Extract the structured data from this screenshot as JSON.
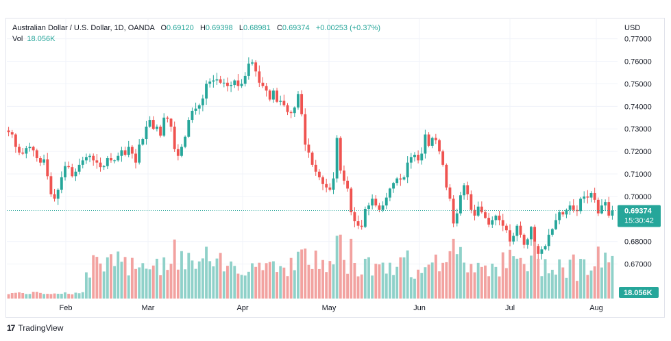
{
  "legend": {
    "symbol": "Australian Dollar / U.S. Dollar, 1D, OANDA",
    "o_label": "O",
    "o": "0.69120",
    "h_label": "H",
    "h": "0.69398",
    "l_label": "L",
    "l": "0.68981",
    "c_label": "C",
    "c": "0.69374",
    "change": "+0.00253 (+0.37%)",
    "vol_label": "Vol",
    "vol": "18.056K"
  },
  "currency": "USD",
  "price_badge": {
    "price": "0.69374",
    "countdown": "15:30:42"
  },
  "volume_badge": "18.056K",
  "watermark": "TradingView",
  "colors": {
    "up": "#26a69a",
    "down": "#ef5350",
    "up_vol": "#8fd1c9",
    "down_vol": "#f2a2a0",
    "badge": "#26a69a"
  },
  "chart_data": {
    "type": "candlestick",
    "title": "Australian Dollar / U.S. Dollar, 1D, OANDA",
    "y_axis": {
      "label": "USD",
      "ticks": [
        "0.77000",
        "0.76000",
        "0.75000",
        "0.74000",
        "0.73000",
        "0.72000",
        "0.71000",
        "0.70000",
        "0.68000",
        "0.67000"
      ],
      "range": [
        0.6565,
        0.7705
      ]
    },
    "x_axis": {
      "ticks": [
        "Feb",
        "Mar",
        "Apr",
        "May",
        "Jun",
        "Jul",
        "Aug"
      ]
    },
    "last_price": 0.69374,
    "grid": true,
    "series": [
      {
        "name": "AUDUSD",
        "type": "candlestick",
        "close_path": [
          0.7285,
          0.7275,
          0.722,
          0.7195,
          0.719,
          0.7215,
          0.722,
          0.7205,
          0.717,
          0.715,
          0.7165,
          0.709,
          0.701,
          0.699,
          0.703,
          0.7085,
          0.7135,
          0.713,
          0.709,
          0.711,
          0.714,
          0.716,
          0.7175,
          0.718,
          0.716,
          0.715,
          0.713,
          0.7135,
          0.717,
          0.716,
          0.716,
          0.718,
          0.7205,
          0.7185,
          0.722,
          0.719,
          0.715,
          0.723,
          0.7255,
          0.731,
          0.734,
          0.73,
          0.731,
          0.727,
          0.735,
          0.7345,
          0.731,
          0.721,
          0.718,
          0.722,
          0.7265,
          0.734,
          0.738,
          0.739,
          0.7405,
          0.7435,
          0.75,
          0.751,
          0.7515,
          0.752,
          0.7505,
          0.7505,
          0.749,
          0.7495,
          0.7515,
          0.749,
          0.75,
          0.7535,
          0.759,
          0.7595,
          0.7555,
          0.7505,
          0.749,
          0.747,
          0.743,
          0.747,
          0.742,
          0.7425,
          0.7405,
          0.7375,
          0.737,
          0.7395,
          0.7455,
          0.7365,
          0.723,
          0.7195,
          0.714,
          0.711,
          0.7085,
          0.7055,
          0.704,
          0.703,
          0.708,
          0.726,
          0.7115,
          0.707,
          0.7035,
          0.693,
          0.689,
          0.687,
          0.6865,
          0.6945,
          0.696,
          0.699,
          0.696,
          0.694,
          0.696,
          0.6995,
          0.7035,
          0.706,
          0.708,
          0.7075,
          0.7085,
          0.715,
          0.7175,
          0.7185,
          0.716,
          0.719,
          0.7275,
          0.7225,
          0.726,
          0.725,
          0.72,
          0.714,
          0.704,
          0.699,
          0.688,
          0.6925,
          0.7005,
          0.705,
          0.701,
          0.694,
          0.6915,
          0.6955,
          0.693,
          0.6905,
          0.6875,
          0.6895,
          0.6915,
          0.6895,
          0.687,
          0.685,
          0.68,
          0.6825,
          0.687,
          0.683,
          0.6785,
          0.681,
          0.6865,
          0.678,
          0.6745,
          0.6765,
          0.678,
          0.683,
          0.6855,
          0.6895,
          0.693,
          0.692,
          0.694,
          0.696,
          0.694,
          0.6935,
          0.699,
          0.7,
          0.6995,
          0.7015,
          0.6985,
          0.6925,
          0.696,
          0.6975,
          0.6915,
          0.6937
        ]
      }
    ]
  }
}
